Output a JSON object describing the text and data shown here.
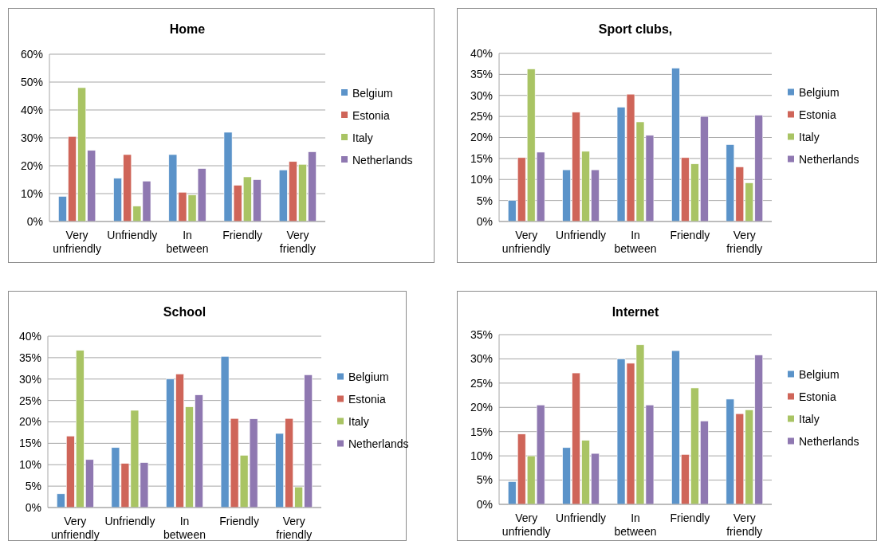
{
  "chart_data": [
    {
      "type": "bar",
      "title": "Home",
      "categories": [
        "Very unfriendly",
        "Unfriendly",
        "In between",
        "Friendly",
        "Very friendly"
      ],
      "ylim": [
        0,
        60
      ],
      "yticks": [
        {
          "value": 0,
          "label": "0%"
        },
        {
          "value": 10,
          "label": "10%"
        },
        {
          "value": 20,
          "label": "20%"
        },
        {
          "value": 30,
          "label": "30%"
        },
        {
          "value": 40,
          "label": "40%"
        },
        {
          "value": 50,
          "label": "50%"
        },
        {
          "value": 60,
          "label": "60%"
        }
      ],
      "grid": "y",
      "legend": "right",
      "series": [
        {
          "name": "Belgium",
          "color": "#5b93c9",
          "values": [
            9,
            15.5,
            24,
            32,
            18.5
          ]
        },
        {
          "name": "Estonia",
          "color": "#cf6559",
          "values": [
            30.5,
            24,
            10.5,
            13,
            21.5
          ]
        },
        {
          "name": "Italy",
          "color": "#a9c464",
          "values": [
            48,
            5.5,
            9.5,
            16,
            20.5
          ]
        },
        {
          "name": "Netherlands",
          "color": "#8f78b1",
          "values": [
            25.5,
            14.5,
            19,
            15,
            25
          ]
        }
      ]
    },
    {
      "type": "bar",
      "title": "Sport clubs,",
      "categories": [
        "Very unfriendly",
        "Unfriendly",
        "In between",
        "Friendly",
        "Very friendly"
      ],
      "ylim": [
        0,
        40
      ],
      "yticks": [
        {
          "value": 0,
          "label": "0%"
        },
        {
          "value": 5,
          "label": "5%"
        },
        {
          "value": 10,
          "label": "10%"
        },
        {
          "value": 15,
          "label": "15%"
        },
        {
          "value": 20,
          "label": "20%"
        },
        {
          "value": 25,
          "label": "25%"
        },
        {
          "value": 30,
          "label": "30%"
        },
        {
          "value": 35,
          "label": "35%"
        },
        {
          "value": 40,
          "label": "40%"
        }
      ],
      "grid": "y",
      "legend": "right",
      "series": [
        {
          "name": "Belgium",
          "color": "#5b93c9",
          "values": [
            5,
            12.3,
            27.2,
            36.5,
            18.3
          ]
        },
        {
          "name": "Estonia",
          "color": "#cf6559",
          "values": [
            15.2,
            26,
            30.3,
            15.2,
            13
          ]
        },
        {
          "name": "Italy",
          "color": "#a9c464",
          "values": [
            36.3,
            16.7,
            23.7,
            13.7,
            9.2
          ]
        },
        {
          "name": "Netherlands",
          "color": "#8f78b1",
          "values": [
            16.5,
            12.3,
            20.5,
            25,
            25.3
          ]
        }
      ]
    },
    {
      "type": "bar",
      "title": "School",
      "categories": [
        "Very unfriendly",
        "Unfriendly",
        "In between",
        "Friendly",
        "Very friendly"
      ],
      "ylim": [
        0,
        40
      ],
      "yticks": [
        {
          "value": 0,
          "label": "0%"
        },
        {
          "value": 5,
          "label": "5%"
        },
        {
          "value": 10,
          "label": "10%"
        },
        {
          "value": 15,
          "label": "15%"
        },
        {
          "value": 20,
          "label": "20%"
        },
        {
          "value": 25,
          "label": "25%"
        },
        {
          "value": 30,
          "label": "30%"
        },
        {
          "value": 35,
          "label": "35%"
        },
        {
          "value": 40,
          "label": "40%"
        }
      ],
      "grid": "y",
      "legend": "right",
      "series": [
        {
          "name": "Belgium",
          "color": "#5b93c9",
          "values": [
            3.2,
            14,
            30,
            35.3,
            17.3
          ]
        },
        {
          "name": "Estonia",
          "color": "#cf6559",
          "values": [
            16.7,
            10.3,
            31.2,
            20.8,
            20.8
          ]
        },
        {
          "name": "Italy",
          "color": "#a9c464",
          "values": [
            36.7,
            22.7,
            23.5,
            12.2,
            4.8
          ]
        },
        {
          "name": "Netherlands",
          "color": "#8f78b1",
          "values": [
            11.2,
            10.5,
            26.3,
            20.7,
            31
          ]
        }
      ]
    },
    {
      "type": "bar",
      "title": "Internet",
      "categories": [
        "Very unfriendly",
        "Unfriendly",
        "In between",
        "Friendly",
        "Very friendly"
      ],
      "ylim": [
        0,
        35
      ],
      "yticks": [
        {
          "value": 0,
          "label": "0%"
        },
        {
          "value": 5,
          "label": "5%"
        },
        {
          "value": 10,
          "label": "10%"
        },
        {
          "value": 15,
          "label": "15%"
        },
        {
          "value": 20,
          "label": "20%"
        },
        {
          "value": 25,
          "label": "25%"
        },
        {
          "value": 30,
          "label": "30%"
        },
        {
          "value": 35,
          "label": "35%"
        }
      ],
      "grid": "y",
      "legend": "right",
      "series": [
        {
          "name": "Belgium",
          "color": "#5b93c9",
          "values": [
            4.7,
            11.7,
            30,
            31.7,
            21.7
          ]
        },
        {
          "name": "Estonia",
          "color": "#cf6559",
          "values": [
            14.5,
            27.1,
            29.1,
            10.3,
            18.7
          ]
        },
        {
          "name": "Italy",
          "color": "#a9c464",
          "values": [
            10,
            13.2,
            32.9,
            24,
            19.5
          ]
        },
        {
          "name": "Netherlands",
          "color": "#8f78b1",
          "values": [
            20.5,
            10.5,
            20.5,
            17.2,
            30.8
          ]
        }
      ]
    }
  ]
}
